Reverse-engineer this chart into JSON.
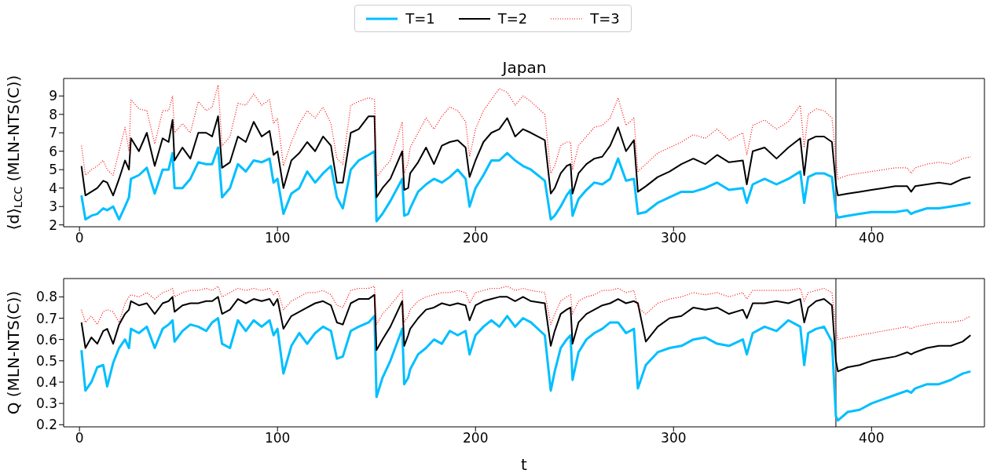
{
  "chart_data": [
    {
      "type": "line",
      "title": "Japan",
      "ylabel": "⟨d⟩$_{LCC}$ (MLN-NTS(C))",
      "legend": "top",
      "marker": "none",
      "x": [
        1,
        3,
        6,
        9,
        12,
        14,
        17,
        20,
        23,
        25,
        26,
        30,
        34,
        38,
        42,
        45,
        47,
        48,
        52,
        56,
        60,
        64,
        67,
        70,
        72,
        76,
        80,
        84,
        88,
        92,
        96,
        98,
        100,
        103,
        107,
        111,
        115,
        119,
        123,
        127,
        130,
        133,
        137,
        141,
        146,
        149,
        150,
        153,
        157,
        163,
        164,
        166,
        167,
        171,
        175,
        179,
        183,
        187,
        191,
        195,
        197,
        200,
        204,
        208,
        212,
        216,
        220,
        224,
        228,
        235,
        238,
        240,
        243,
        246,
        248,
        249,
        252,
        256,
        260,
        264,
        268,
        272,
        276,
        280,
        282,
        286,
        292,
        298,
        304,
        310,
        316,
        322,
        328,
        335,
        337,
        340,
        346,
        352,
        358,
        364,
        366,
        368,
        372,
        376,
        380,
        382,
        383,
        388,
        394,
        400,
        406,
        412,
        418,
        420,
        422,
        428,
        434,
        440,
        446,
        450
      ],
      "xlim": [
        -8,
        457
      ],
      "xticks": [
        0,
        100,
        200,
        300,
        400
      ],
      "ylim": [
        1.9,
        9.95
      ],
      "yticks": [
        2,
        3,
        4,
        5,
        6,
        7,
        8,
        9
      ],
      "ref_lines": [
        {
          "axis": "x",
          "value": 382,
          "color": "#000000"
        }
      ],
      "series": [
        {
          "name": "T=1",
          "color": "#00bfff",
          "line_style": "solid",
          "values": [
            3.6,
            2.3,
            2.5,
            2.6,
            2.9,
            2.8,
            3.0,
            2.3,
            3.0,
            3.5,
            4.5,
            4.7,
            5.1,
            3.7,
            5.0,
            5.0,
            5.9,
            4.0,
            4.0,
            4.5,
            5.4,
            5.3,
            5.3,
            6.2,
            3.5,
            4.0,
            5.3,
            4.9,
            5.5,
            5.4,
            5.6,
            4.3,
            4.5,
            2.6,
            3.7,
            4.0,
            4.9,
            4.3,
            4.8,
            5.2,
            3.5,
            2.9,
            5.0,
            5.5,
            5.8,
            6.0,
            2.2,
            2.6,
            3.3,
            4.5,
            2.5,
            2.6,
            2.9,
            3.8,
            4.2,
            4.5,
            4.3,
            4.6,
            5.0,
            4.5,
            3.0,
            4.0,
            4.7,
            5.5,
            5.5,
            5.9,
            5.5,
            5.2,
            5.0,
            4.4,
            2.3,
            2.5,
            3.0,
            3.6,
            3.9,
            2.5,
            3.4,
            3.9,
            4.3,
            4.2,
            4.5,
            5.6,
            4.4,
            4.5,
            2.6,
            2.7,
            3.2,
            3.5,
            3.8,
            3.8,
            4.0,
            4.3,
            3.9,
            4.0,
            3.2,
            4.2,
            4.5,
            4.2,
            4.5,
            4.9,
            3.2,
            4.6,
            4.8,
            4.8,
            4.6,
            2.7,
            2.4,
            2.5,
            2.6,
            2.7,
            2.7,
            2.7,
            2.8,
            2.6,
            2.7,
            2.9,
            2.9,
            3.0,
            3.1,
            3.2
          ]
        },
        {
          "name": "T=2",
          "color": "#000000",
          "line_style": "solid",
          "values": [
            5.2,
            3.6,
            3.8,
            4.0,
            4.4,
            4.3,
            3.6,
            4.5,
            5.5,
            5.0,
            6.7,
            6.0,
            7.0,
            5.2,
            6.7,
            6.5,
            7.7,
            5.5,
            6.2,
            5.6,
            7.0,
            7.0,
            6.8,
            7.9,
            5.1,
            5.4,
            6.8,
            6.5,
            7.6,
            6.8,
            7.1,
            5.8,
            6.0,
            4.0,
            5.5,
            5.9,
            6.5,
            6.0,
            6.8,
            6.3,
            4.3,
            4.3,
            7.0,
            7.2,
            7.9,
            7.9,
            3.5,
            4.0,
            4.5,
            6.0,
            3.9,
            4.0,
            4.8,
            5.4,
            6.2,
            5.3,
            6.3,
            6.5,
            6.6,
            6.2,
            4.6,
            5.5,
            6.5,
            7.0,
            7.2,
            7.8,
            6.8,
            7.2,
            7.0,
            6.6,
            3.7,
            4.0,
            4.8,
            5.2,
            5.3,
            3.7,
            4.8,
            5.3,
            5.6,
            5.7,
            6.3,
            7.3,
            6.0,
            6.6,
            3.8,
            4.1,
            4.6,
            4.9,
            5.3,
            5.6,
            5.3,
            5.8,
            5.4,
            5.5,
            4.2,
            6.0,
            6.2,
            5.6,
            6.2,
            6.7,
            4.7,
            6.6,
            6.8,
            6.8,
            6.5,
            4.2,
            3.6,
            3.7,
            3.8,
            3.9,
            4.0,
            4.1,
            4.1,
            3.8,
            4.1,
            4.2,
            4.3,
            4.2,
            4.5,
            4.6
          ]
        },
        {
          "name": "T=3",
          "color": "#ff0000",
          "line_style": "dotted",
          "values": [
            6.3,
            4.7,
            5.0,
            5.2,
            5.5,
            5.0,
            4.7,
            6.0,
            7.3,
            6.0,
            8.8,
            8.3,
            8.2,
            6.4,
            8.2,
            8.2,
            9.0,
            7.0,
            7.5,
            7.0,
            8.7,
            8.2,
            8.4,
            9.6,
            6.3,
            6.8,
            8.6,
            8.5,
            9.1,
            8.5,
            8.8,
            7.5,
            7.8,
            5.2,
            6.5,
            7.5,
            8.2,
            7.8,
            8.4,
            7.5,
            5.6,
            5.3,
            8.5,
            8.7,
            8.9,
            8.8,
            4.6,
            5.0,
            5.5,
            7.6,
            4.8,
            5.4,
            6.2,
            7.0,
            7.8,
            7.2,
            7.9,
            8.4,
            8.2,
            7.6,
            5.7,
            7.2,
            8.2,
            8.8,
            9.4,
            9.2,
            8.5,
            9.0,
            8.7,
            8.0,
            4.8,
            5.2,
            6.3,
            6.5,
            6.5,
            5.0,
            6.3,
            6.8,
            7.3,
            7.4,
            7.8,
            8.9,
            7.4,
            7.8,
            4.9,
            5.3,
            5.9,
            6.2,
            6.5,
            6.9,
            6.7,
            7.2,
            6.6,
            7.0,
            5.8,
            7.4,
            7.7,
            7.2,
            7.6,
            8.5,
            6.2,
            8.0,
            8.3,
            8.2,
            7.8,
            5.6,
            4.5,
            4.7,
            4.8,
            4.9,
            5.0,
            5.1,
            5.1,
            4.8,
            5.1,
            5.3,
            5.4,
            5.3,
            5.6,
            5.7
          ]
        }
      ]
    },
    {
      "type": "line",
      "ylabel": "Q (MLN-NTS(C))",
      "xlabel": "t",
      "legend": false,
      "marker": "none",
      "x": [
        1,
        3,
        6,
        9,
        12,
        14,
        17,
        20,
        23,
        25,
        26,
        30,
        34,
        38,
        42,
        45,
        47,
        48,
        52,
        56,
        60,
        64,
        67,
        70,
        72,
        76,
        80,
        84,
        88,
        92,
        96,
        98,
        100,
        103,
        107,
        111,
        115,
        119,
        123,
        127,
        130,
        133,
        137,
        141,
        146,
        149,
        150,
        153,
        157,
        163,
        164,
        166,
        167,
        171,
        175,
        179,
        183,
        187,
        191,
        195,
        197,
        200,
        204,
        208,
        212,
        216,
        220,
        224,
        228,
        235,
        238,
        240,
        243,
        246,
        248,
        249,
        252,
        256,
        260,
        264,
        268,
        272,
        276,
        280,
        282,
        286,
        292,
        298,
        304,
        310,
        316,
        322,
        328,
        335,
        337,
        340,
        346,
        352,
        358,
        364,
        366,
        368,
        372,
        376,
        380,
        382,
        383,
        388,
        394,
        400,
        406,
        412,
        418,
        420,
        422,
        428,
        434,
        440,
        446,
        450
      ],
      "xlim": [
        -8,
        457
      ],
      "xticks": [
        0,
        100,
        200,
        300,
        400
      ],
      "ylim": [
        0.19,
        0.886
      ],
      "yticks": [
        0.2,
        0.3,
        0.4,
        0.5,
        0.6,
        0.7,
        0.8
      ],
      "ref_lines": [
        {
          "axis": "x",
          "value": 382,
          "color": "#000000"
        }
      ],
      "series": [
        {
          "color": "#00bfff",
          "line_style": "solid",
          "values": [
            0.55,
            0.36,
            0.4,
            0.47,
            0.48,
            0.38,
            0.49,
            0.56,
            0.6,
            0.56,
            0.65,
            0.63,
            0.66,
            0.56,
            0.65,
            0.67,
            0.69,
            0.59,
            0.64,
            0.67,
            0.66,
            0.64,
            0.68,
            0.7,
            0.58,
            0.56,
            0.69,
            0.64,
            0.69,
            0.66,
            0.69,
            0.62,
            0.65,
            0.44,
            0.57,
            0.63,
            0.58,
            0.63,
            0.66,
            0.64,
            0.51,
            0.52,
            0.64,
            0.66,
            0.68,
            0.71,
            0.33,
            0.42,
            0.5,
            0.65,
            0.39,
            0.42,
            0.46,
            0.53,
            0.56,
            0.6,
            0.58,
            0.64,
            0.62,
            0.64,
            0.53,
            0.62,
            0.66,
            0.69,
            0.66,
            0.71,
            0.66,
            0.7,
            0.68,
            0.62,
            0.36,
            0.45,
            0.56,
            0.6,
            0.62,
            0.41,
            0.54,
            0.6,
            0.63,
            0.65,
            0.68,
            0.68,
            0.63,
            0.65,
            0.37,
            0.48,
            0.54,
            0.56,
            0.57,
            0.6,
            0.61,
            0.58,
            0.57,
            0.6,
            0.53,
            0.63,
            0.66,
            0.64,
            0.69,
            0.66,
            0.48,
            0.63,
            0.65,
            0.66,
            0.59,
            0.24,
            0.22,
            0.26,
            0.27,
            0.3,
            0.32,
            0.34,
            0.36,
            0.35,
            0.37,
            0.39,
            0.39,
            0.41,
            0.44,
            0.45
          ]
        },
        {
          "color": "#000000",
          "line_style": "solid",
          "values": [
            0.68,
            0.56,
            0.61,
            0.58,
            0.64,
            0.65,
            0.58,
            0.67,
            0.72,
            0.74,
            0.78,
            0.76,
            0.77,
            0.72,
            0.77,
            0.78,
            0.8,
            0.73,
            0.76,
            0.77,
            0.77,
            0.78,
            0.78,
            0.8,
            0.72,
            0.74,
            0.79,
            0.77,
            0.79,
            0.78,
            0.79,
            0.76,
            0.79,
            0.65,
            0.71,
            0.73,
            0.75,
            0.77,
            0.78,
            0.76,
            0.68,
            0.67,
            0.77,
            0.79,
            0.79,
            0.81,
            0.55,
            0.6,
            0.66,
            0.78,
            0.57,
            0.62,
            0.65,
            0.7,
            0.74,
            0.75,
            0.77,
            0.76,
            0.77,
            0.76,
            0.69,
            0.76,
            0.78,
            0.79,
            0.8,
            0.8,
            0.78,
            0.8,
            0.78,
            0.77,
            0.57,
            0.64,
            0.72,
            0.74,
            0.75,
            0.58,
            0.68,
            0.72,
            0.74,
            0.76,
            0.77,
            0.79,
            0.77,
            0.78,
            0.77,
            0.59,
            0.66,
            0.7,
            0.71,
            0.75,
            0.74,
            0.75,
            0.72,
            0.74,
            0.7,
            0.77,
            0.77,
            0.78,
            0.77,
            0.79,
            0.68,
            0.75,
            0.78,
            0.79,
            0.76,
            0.5,
            0.45,
            0.47,
            0.48,
            0.5,
            0.51,
            0.52,
            0.54,
            0.53,
            0.54,
            0.56,
            0.57,
            0.57,
            0.59,
            0.62
          ]
        },
        {
          "color": "#ff0000",
          "line_style": "dotted",
          "values": [
            0.74,
            0.68,
            0.71,
            0.67,
            0.73,
            0.74,
            0.73,
            0.68,
            0.77,
            0.8,
            0.81,
            0.8,
            0.82,
            0.79,
            0.82,
            0.83,
            0.84,
            0.8,
            0.82,
            0.83,
            0.83,
            0.84,
            0.83,
            0.85,
            0.8,
            0.82,
            0.84,
            0.83,
            0.84,
            0.83,
            0.84,
            0.81,
            0.83,
            0.74,
            0.78,
            0.8,
            0.82,
            0.82,
            0.83,
            0.81,
            0.76,
            0.75,
            0.83,
            0.84,
            0.84,
            0.85,
            0.67,
            0.72,
            0.76,
            0.83,
            0.68,
            0.71,
            0.74,
            0.78,
            0.8,
            0.81,
            0.82,
            0.82,
            0.83,
            0.82,
            0.77,
            0.82,
            0.83,
            0.84,
            0.84,
            0.85,
            0.83,
            0.84,
            0.83,
            0.82,
            0.67,
            0.72,
            0.78,
            0.8,
            0.81,
            0.72,
            0.78,
            0.8,
            0.81,
            0.83,
            0.83,
            0.84,
            0.82,
            0.83,
            0.75,
            0.72,
            0.77,
            0.79,
            0.8,
            0.82,
            0.81,
            0.82,
            0.8,
            0.82,
            0.79,
            0.83,
            0.83,
            0.83,
            0.83,
            0.84,
            0.78,
            0.82,
            0.83,
            0.84,
            0.82,
            0.65,
            0.6,
            0.61,
            0.62,
            0.63,
            0.64,
            0.65,
            0.66,
            0.65,
            0.66,
            0.67,
            0.68,
            0.68,
            0.69,
            0.71
          ]
        }
      ]
    }
  ]
}
